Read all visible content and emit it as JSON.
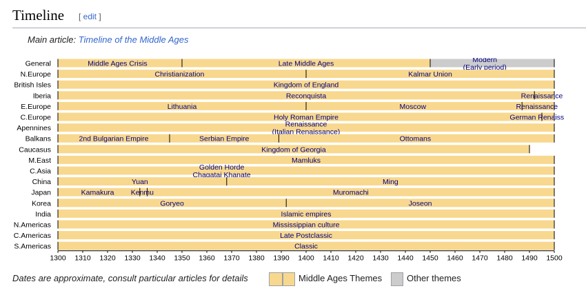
{
  "section": {
    "title": "Timeline",
    "edit_label": "edit"
  },
  "hatnote": {
    "prefix": "Main article: ",
    "link": "Timeline of the Middle Ages"
  },
  "footer": {
    "note": "Dates are approximate, consult particular articles for details",
    "legend_theme": "Middle Ages Themes",
    "legend_other": "Other themes",
    "color_theme": "#f8d88e",
    "color_other": "#cccccc"
  },
  "chart_data": {
    "type": "bar",
    "xlim": [
      1300,
      1500
    ],
    "x_ticks": [
      1300,
      1310,
      1320,
      1330,
      1340,
      1350,
      1360,
      1370,
      1380,
      1390,
      1400,
      1410,
      1420,
      1430,
      1440,
      1450,
      1460,
      1470,
      1480,
      1490,
      1500
    ],
    "rows": [
      {
        "name": "General",
        "bars": [
          {
            "start": 1300,
            "end": 1350,
            "label": [
              "Middle Ages Crisis"
            ],
            "lpos": 1324
          },
          {
            "start": 1350,
            "end": 1450,
            "label": [
              "Late Middle Ages"
            ]
          },
          {
            "start": 1450,
            "end": 1500,
            "label": [
              "Modern",
              "(Early period)"
            ],
            "other": true,
            "lpos": 1472
          }
        ]
      },
      {
        "name": "N.Europe",
        "bars": [
          {
            "start": 1300,
            "end": 1400,
            "label": [
              "Christianization"
            ],
            "lpos": 1349
          },
          {
            "start": 1400,
            "end": 1500,
            "label": [
              "Kalmar Union"
            ],
            "lpos": 1450
          }
        ]
      },
      {
        "name": "British Isles",
        "bars": [
          {
            "start": 1300,
            "end": 1500,
            "label": [
              "Kingdom of England"
            ]
          }
        ]
      },
      {
        "name": "Iberia",
        "bars": [
          {
            "start": 1300,
            "end": 1492,
            "label": [
              "Reconquista"
            ],
            "lpos": 1400
          },
          {
            "start": 1492,
            "end": 1500,
            "label": [
              "Renaissance"
            ],
            "lpos": 1495
          }
        ]
      },
      {
        "name": "E.Europe",
        "bars": [
          {
            "start": 1300,
            "end": 1400,
            "label": [
              "Lithuania"
            ],
            "lpos": 1350
          },
          {
            "start": 1400,
            "end": 1487,
            "label": [
              "Moscow"
            ],
            "lpos": 1443
          },
          {
            "start": 1487,
            "end": 1500,
            "label": [
              "Renaissance"
            ],
            "lpos": 1493
          }
        ]
      },
      {
        "name": "C.Europe",
        "bars": [
          {
            "start": 1300,
            "end": 1495,
            "label": [
              "Holy Roman Empire"
            ],
            "lpos": 1400
          },
          {
            "start": 1495,
            "end": 1500,
            "label": [
              "German Renaiss"
            ],
            "lpos": 1493
          }
        ]
      },
      {
        "name": "Apennines",
        "bars": [
          {
            "start": 1300,
            "end": 1500,
            "label": [
              "Renaissance",
              "(Italian Renaissance)"
            ],
            "lpos": 1400
          }
        ]
      },
      {
        "name": "Balkans",
        "bars": [
          {
            "start": 1300,
            "end": 1345,
            "label": [
              "2nd Bulgarian Empire"
            ]
          },
          {
            "start": 1345,
            "end": 1389,
            "label": [
              "Serbian Empire"
            ]
          },
          {
            "start": 1389,
            "end": 1500,
            "label": [
              "Ottomans"
            ],
            "lpos": 1444
          }
        ]
      },
      {
        "name": "Caucasus",
        "bars": [
          {
            "start": 1300,
            "end": 1490,
            "label": [
              "Kingdom of Georgia"
            ],
            "lpos": 1395
          }
        ]
      },
      {
        "name": "M.East",
        "bars": [
          {
            "start": 1300,
            "end": 1500,
            "label": [
              "Mamluks"
            ]
          }
        ]
      },
      {
        "name": "C.Asia",
        "bars": [
          {
            "start": 1300,
            "end": 1500,
            "label": [
              "Golden Horde",
              "Chagatai Khanate"
            ],
            "lpos": 1366
          }
        ]
      },
      {
        "name": "China",
        "bars": [
          {
            "start": 1300,
            "end": 1368,
            "label": [
              "Yuan"
            ],
            "lpos": 1333
          },
          {
            "start": 1368,
            "end": 1500,
            "label": [
              "Ming"
            ],
            "lpos": 1434
          }
        ]
      },
      {
        "name": "Japan",
        "bars": [
          {
            "start": 1300,
            "end": 1333,
            "label": [
              "Kamakura"
            ],
            "lpos": 1316
          },
          {
            "start": 1333,
            "end": 1336,
            "label": [
              "Kenmu"
            ],
            "lpos": 1334
          },
          {
            "start": 1336,
            "end": 1500,
            "label": [
              "Muromachi"
            ],
            "lpos": 1418
          }
        ]
      },
      {
        "name": "Korea",
        "bars": [
          {
            "start": 1300,
            "end": 1392,
            "label": [
              "Goryeo"
            ]
          },
          {
            "start": 1392,
            "end": 1500,
            "label": [
              "Joseon"
            ],
            "lpos": 1446
          }
        ]
      },
      {
        "name": "India",
        "bars": [
          {
            "start": 1300,
            "end": 1500,
            "label": [
              "Islamic empires"
            ]
          }
        ]
      },
      {
        "name": "N.Americas",
        "bars": [
          {
            "start": 1300,
            "end": 1500,
            "label": [
              "Mississippian culture"
            ]
          }
        ]
      },
      {
        "name": "C.Americas",
        "bars": [
          {
            "start": 1300,
            "end": 1500,
            "label": [
              "Late Postclassic"
            ]
          }
        ]
      },
      {
        "name": "S.Americas",
        "bars": [
          {
            "start": 1300,
            "end": 1500,
            "label": [
              "Classic"
            ]
          }
        ]
      }
    ]
  }
}
